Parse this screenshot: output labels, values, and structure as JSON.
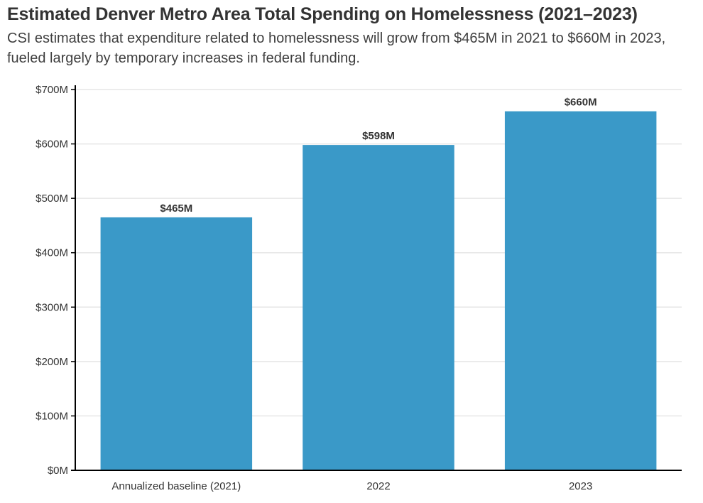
{
  "chart_data": {
    "type": "bar",
    "title": "Estimated Denver Metro Area Total Spending on Homelessness (2021–2023)",
    "subtitle": "CSI estimates that expenditure related to homelessness will grow from $465M in 2021 to $660M in 2023, fueled largely by temporary increases in federal funding.",
    "categories": [
      "Annualized baseline (2021)",
      "2022",
      "2023"
    ],
    "values": [
      465,
      598,
      660
    ],
    "data_labels": [
      "$465M",
      "$598M",
      "$660M"
    ],
    "xlabel": "",
    "ylabel": "",
    "ylim": [
      0,
      700
    ],
    "yticks": [
      0,
      100,
      200,
      300,
      400,
      500,
      600,
      700
    ],
    "ytick_labels": [
      "$0M",
      "$100M",
      "$200M",
      "$300M",
      "$400M",
      "$500M",
      "$600M",
      "$700M"
    ],
    "grid": true,
    "legend": "none",
    "bar_color": "#3a99c8",
    "gridline_color": "#e6e6e6",
    "axis_color": "#000000"
  }
}
